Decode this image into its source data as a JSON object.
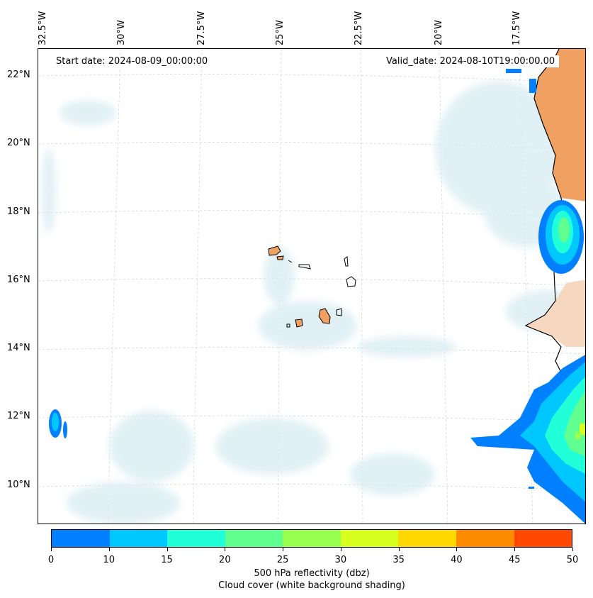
{
  "map": {
    "projection_note": "",
    "lon_labels": [
      "32.5°W",
      "30°W",
      "27.5°W",
      "25°W",
      "22.5°W",
      "20°W",
      "17.5°W"
    ],
    "lat_labels": [
      "22°N",
      "20°N",
      "18°N",
      "16°N",
      "14°N",
      "12°N",
      "10°N"
    ],
    "start_date": "Start date: 2024-08-09_00:00:00",
    "valid_date": "Valid_date: 2024-08-10T19:00:00.00",
    "land_color": "#f0a060",
    "coast_color": "#000000",
    "cloud_color": "#d8ecf2"
  },
  "colorbar": {
    "colors": [
      "#0080ff",
      "#00c8ff",
      "#20ffd8",
      "#60ff90",
      "#98ff50",
      "#d8ff20",
      "#ffd800",
      "#ff8c00",
      "#ff4800"
    ],
    "ticks": [
      "0",
      "10",
      "15",
      "20",
      "25",
      "30",
      "35",
      "40",
      "45",
      "50"
    ],
    "label_line1": "500 hPa reflectivity (dbz)",
    "label_line2": "Cloud cover (white background shading)"
  }
}
